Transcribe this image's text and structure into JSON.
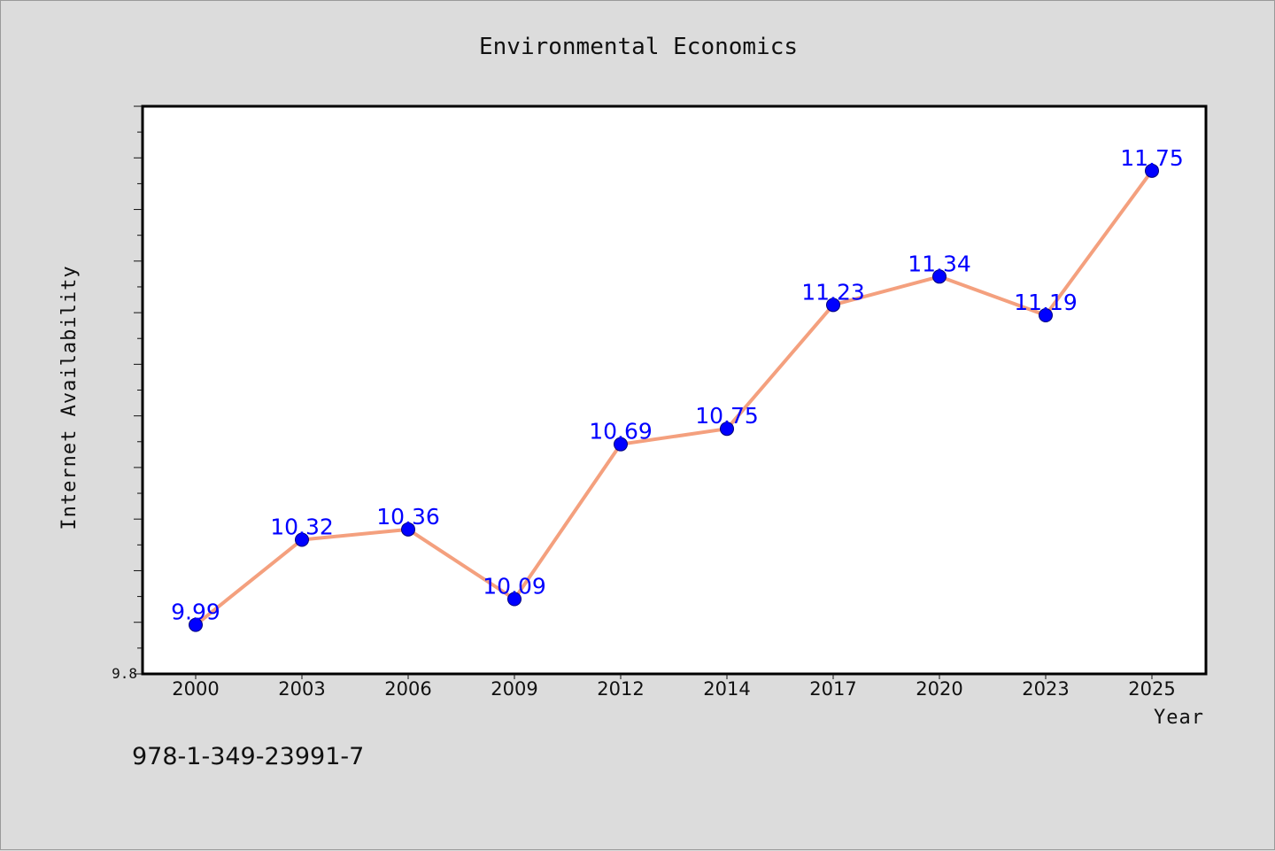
{
  "chart_data": {
    "type": "line",
    "title": "Environmental Economics",
    "xlabel": "Year",
    "ylabel": "Internet Availability",
    "categories": [
      "2000",
      "2003",
      "2006",
      "2009",
      "2012",
      "2014",
      "2017",
      "2020",
      "2023",
      "2025"
    ],
    "series": [
      {
        "values": [
          9.99,
          10.32,
          10.36,
          10.09,
          10.69,
          10.75,
          11.23,
          11.34,
          11.19,
          11.75
        ],
        "data_labels": [
          "9.99",
          "10.32",
          "10.36",
          "10.09",
          "10.69",
          "10.75",
          "11.23",
          "11.34",
          "11.19",
          "11.75"
        ]
      }
    ],
    "ylim": [
      9.8,
      12.0
    ],
    "yticks_labeled": [
      "9.8"
    ],
    "grid": false,
    "line_color": "#f4a07e",
    "marker_color": "#0000ff",
    "label_color": "#0000ff"
  },
  "annotation": {
    "isbn": "978-1-349-23991-7"
  }
}
